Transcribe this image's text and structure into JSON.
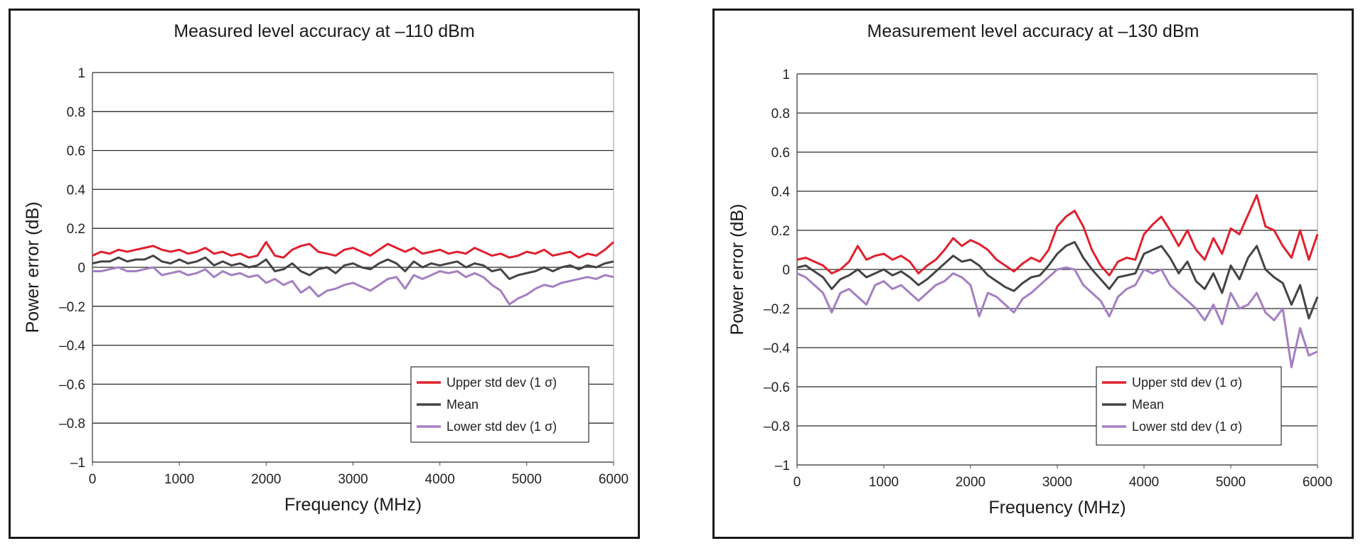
{
  "chart_data": [
    {
      "type": "line",
      "title": "Measured level accuracy at –110 dBm",
      "xlabel": "Frequency (MHz)",
      "ylabel": "Power error (dB)",
      "xlim": [
        0,
        6000
      ],
      "ylim": [
        -1,
        1
      ],
      "x_ticks": [
        "0",
        "1000",
        "2000",
        "3000",
        "4000",
        "5000",
        "6000"
      ],
      "y_ticks": [
        "1",
        "0.8",
        "0.6",
        "0.4",
        "0.2",
        "0",
        "–0.2",
        "–0.4",
        "–0.6",
        "–0.8",
        "–1"
      ],
      "grid": "horizontal",
      "legend_position": "bottom-right",
      "x": [
        0,
        100,
        200,
        300,
        400,
        500,
        600,
        700,
        800,
        900,
        1000,
        1100,
        1200,
        1300,
        1400,
        1500,
        1600,
        1700,
        1800,
        1900,
        2000,
        2100,
        2200,
        2300,
        2400,
        2500,
        2600,
        2700,
        2800,
        2900,
        3000,
        3100,
        3200,
        3300,
        3400,
        3500,
        3600,
        3700,
        3800,
        3900,
        4000,
        4100,
        4200,
        4300,
        4400,
        4500,
        4600,
        4700,
        4800,
        4900,
        5000,
        5100,
        5200,
        5300,
        5400,
        5500,
        5600,
        5700,
        5800,
        5900,
        6000
      ],
      "series": [
        {
          "name": "Upper std dev (1 σ)",
          "color": "#e0202e",
          "values": [
            0.06,
            0.08,
            0.07,
            0.09,
            0.08,
            0.09,
            0.1,
            0.11,
            0.09,
            0.08,
            0.09,
            0.07,
            0.08,
            0.1,
            0.07,
            0.08,
            0.06,
            0.07,
            0.05,
            0.06,
            0.13,
            0.06,
            0.05,
            0.09,
            0.11,
            0.12,
            0.08,
            0.07,
            0.06,
            0.09,
            0.1,
            0.08,
            0.06,
            0.09,
            0.12,
            0.1,
            0.08,
            0.1,
            0.07,
            0.08,
            0.09,
            0.07,
            0.08,
            0.07,
            0.1,
            0.08,
            0.06,
            0.07,
            0.05,
            0.06,
            0.08,
            0.07,
            0.09,
            0.06,
            0.07,
            0.08,
            0.05,
            0.07,
            0.06,
            0.09,
            0.13
          ]
        },
        {
          "name": "Mean",
          "color": "#444444",
          "values": [
            0.02,
            0.03,
            0.03,
            0.05,
            0.03,
            0.04,
            0.04,
            0.06,
            0.03,
            0.02,
            0.04,
            0.02,
            0.03,
            0.05,
            0.01,
            0.03,
            0.01,
            0.02,
            0.0,
            0.01,
            0.04,
            -0.02,
            -0.01,
            0.02,
            -0.02,
            -0.04,
            -0.01,
            0.0,
            -0.03,
            0.01,
            0.02,
            0.0,
            -0.01,
            0.02,
            0.04,
            0.02,
            -0.02,
            0.03,
            0.0,
            0.02,
            0.01,
            0.02,
            0.03,
            0.0,
            0.02,
            0.01,
            -0.02,
            -0.01,
            -0.06,
            -0.04,
            -0.03,
            -0.02,
            0.0,
            -0.02,
            0.0,
            0.01,
            -0.01,
            0.01,
            0.0,
            0.02,
            0.03
          ]
        },
        {
          "name": "Lower std dev (1 σ)",
          "color": "#a57fc2",
          "values": [
            -0.02,
            -0.02,
            -0.01,
            0.0,
            -0.02,
            -0.02,
            -0.01,
            0.0,
            -0.04,
            -0.03,
            -0.02,
            -0.04,
            -0.03,
            -0.01,
            -0.05,
            -0.02,
            -0.04,
            -0.03,
            -0.05,
            -0.04,
            -0.08,
            -0.06,
            -0.09,
            -0.07,
            -0.13,
            -0.1,
            -0.15,
            -0.12,
            -0.11,
            -0.09,
            -0.08,
            -0.1,
            -0.12,
            -0.09,
            -0.06,
            -0.05,
            -0.11,
            -0.04,
            -0.06,
            -0.04,
            -0.02,
            -0.03,
            -0.02,
            -0.05,
            -0.03,
            -0.05,
            -0.09,
            -0.12,
            -0.19,
            -0.16,
            -0.14,
            -0.11,
            -0.09,
            -0.1,
            -0.08,
            -0.07,
            -0.06,
            -0.05,
            -0.06,
            -0.04,
            -0.05
          ]
        }
      ]
    },
    {
      "type": "line",
      "title": "Measurement level accuracy at –130 dBm",
      "xlabel": "Frequency (MHz)",
      "ylabel": "Power error (dB)",
      "xlim": [
        0,
        6000
      ],
      "ylim": [
        -1,
        1
      ],
      "x_ticks": [
        "0",
        "1000",
        "2000",
        "3000",
        "4000",
        "5000",
        "6000"
      ],
      "y_ticks": [
        "1",
        "0.8",
        "0.6",
        "0.4",
        "0.2",
        "0",
        "–0.2",
        "–0.4",
        "–0.6",
        "–0.8",
        "–1"
      ],
      "grid": "horizontal",
      "legend_position": "bottom-right",
      "x": [
        0,
        100,
        200,
        300,
        400,
        500,
        600,
        700,
        800,
        900,
        1000,
        1100,
        1200,
        1300,
        1400,
        1500,
        1600,
        1700,
        1800,
        1900,
        2000,
        2100,
        2200,
        2300,
        2400,
        2500,
        2600,
        2700,
        2800,
        2900,
        3000,
        3100,
        3200,
        3300,
        3400,
        3500,
        3600,
        3700,
        3800,
        3900,
        4000,
        4100,
        4200,
        4300,
        4400,
        4500,
        4600,
        4700,
        4800,
        4900,
        5000,
        5100,
        5200,
        5300,
        5400,
        5500,
        5600,
        5700,
        5800,
        5900,
        6000
      ],
      "series": [
        {
          "name": "Upper std dev (1 σ)",
          "color": "#e0202e",
          "values": [
            0.05,
            0.06,
            0.04,
            0.02,
            -0.02,
            0.0,
            0.04,
            0.12,
            0.05,
            0.07,
            0.08,
            0.05,
            0.07,
            0.04,
            -0.02,
            0.02,
            0.05,
            0.1,
            0.16,
            0.12,
            0.15,
            0.13,
            0.1,
            0.05,
            0.02,
            -0.01,
            0.03,
            0.06,
            0.04,
            0.1,
            0.22,
            0.27,
            0.3,
            0.22,
            0.1,
            0.02,
            -0.03,
            0.04,
            0.06,
            0.05,
            0.18,
            0.23,
            0.27,
            0.2,
            0.12,
            0.2,
            0.1,
            0.05,
            0.16,
            0.08,
            0.21,
            0.18,
            0.28,
            0.38,
            0.22,
            0.2,
            0.12,
            0.06,
            0.2,
            0.05,
            0.18
          ]
        },
        {
          "name": "Mean",
          "color": "#444444",
          "values": [
            0.01,
            0.02,
            -0.01,
            -0.04,
            -0.1,
            -0.05,
            -0.03,
            0.0,
            -0.04,
            -0.02,
            0.0,
            -0.03,
            -0.01,
            -0.04,
            -0.08,
            -0.05,
            -0.01,
            0.03,
            0.07,
            0.04,
            0.05,
            0.02,
            -0.03,
            -0.06,
            -0.09,
            -0.11,
            -0.07,
            -0.04,
            -0.03,
            0.02,
            0.08,
            0.12,
            0.14,
            0.06,
            0.0,
            -0.05,
            -0.1,
            -0.04,
            -0.03,
            -0.02,
            0.08,
            0.1,
            0.12,
            0.06,
            -0.02,
            0.04,
            -0.06,
            -0.1,
            -0.02,
            -0.12,
            0.02,
            -0.05,
            0.06,
            0.12,
            0.0,
            -0.04,
            -0.07,
            -0.18,
            -0.08,
            -0.25,
            -0.14
          ]
        },
        {
          "name": "Lower std dev (1 σ)",
          "color": "#a57fc2",
          "values": [
            -0.02,
            -0.04,
            -0.08,
            -0.12,
            -0.22,
            -0.12,
            -0.1,
            -0.14,
            -0.18,
            -0.08,
            -0.06,
            -0.1,
            -0.08,
            -0.12,
            -0.16,
            -0.12,
            -0.08,
            -0.06,
            -0.02,
            -0.04,
            -0.08,
            -0.24,
            -0.12,
            -0.14,
            -0.18,
            -0.22,
            -0.15,
            -0.12,
            -0.08,
            -0.04,
            0.0,
            0.01,
            0.0,
            -0.08,
            -0.12,
            -0.16,
            -0.24,
            -0.14,
            -0.1,
            -0.08,
            0.0,
            -0.02,
            0.0,
            -0.08,
            -0.12,
            -0.16,
            -0.2,
            -0.26,
            -0.18,
            -0.28,
            -0.12,
            -0.2,
            -0.18,
            -0.12,
            -0.22,
            -0.26,
            -0.2,
            -0.5,
            -0.3,
            -0.44,
            -0.42
          ]
        }
      ]
    }
  ]
}
